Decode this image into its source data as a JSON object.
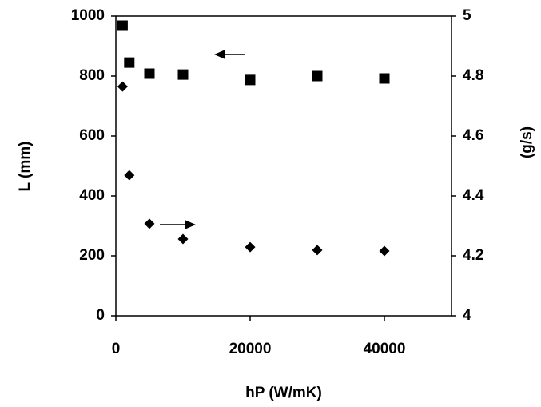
{
  "chart_data": {
    "type": "scatter",
    "xlabel": "hP (W/mK)",
    "ylabel": "L (mm)",
    "y2label": "(g/s)",
    "xlim": [
      0,
      50000
    ],
    "xticks": [
      0,
      20000,
      40000
    ],
    "ylim": [
      0,
      1000
    ],
    "yticks": [
      0,
      200,
      400,
      600,
      800,
      1000
    ],
    "y2lim": [
      4,
      5
    ],
    "y2ticks": [
      4,
      4.2,
      4.4,
      4.6,
      4.8,
      5
    ],
    "x": [
      1000,
      2000,
      5000,
      10000,
      20000,
      30000,
      40000
    ],
    "series": [
      {
        "marker": "square",
        "color": "#000000",
        "values": [
          968,
          845,
          808,
          805,
          787,
          800,
          792
        ]
      },
      {
        "marker": "diamond",
        "color": "#000000",
        "axis": "y2",
        "values": [
          4.765,
          4.469,
          4.307,
          4.256,
          4.229,
          4.219,
          4.216
        ]
      }
    ]
  }
}
